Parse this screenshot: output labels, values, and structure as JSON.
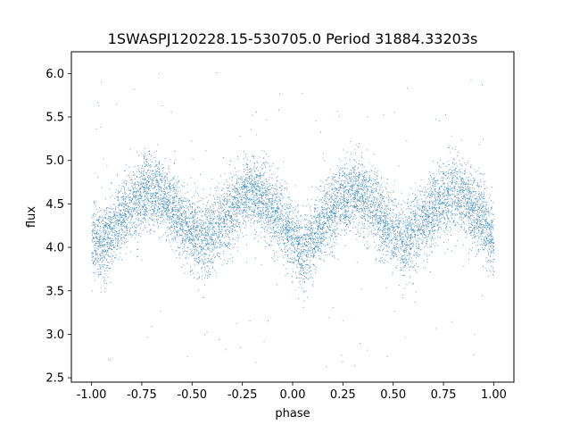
{
  "chart_data": {
    "type": "scatter",
    "title": "1SWASPJ120228.15-530705.0 Period 31884.33203s",
    "xlabel": "phase",
    "ylabel": "flux",
    "xlim": [
      -1.1,
      1.1
    ],
    "ylim": [
      2.45,
      6.25
    ],
    "xticks": [
      "-1.00",
      "-0.75",
      "-0.50",
      "-0.25",
      "0.00",
      "0.25",
      "0.50",
      "0.75",
      "1.00"
    ],
    "yticks": [
      "2.5",
      "3.0",
      "3.5",
      "4.0",
      "4.5",
      "5.0",
      "5.5",
      "6.0"
    ],
    "grid": false,
    "legend": "none",
    "marker_color": "#1f77b4",
    "series": [
      {
        "x_range": [
          -1.0,
          1.0
        ],
        "trend_x": [
          -1.0,
          -0.95,
          -0.85,
          -0.75,
          -0.7,
          -0.65,
          -0.55,
          -0.45,
          -0.35,
          -0.25,
          -0.2,
          -0.15,
          -0.05,
          0.05,
          0.15,
          0.25,
          0.3,
          0.35,
          0.45,
          0.55,
          0.65,
          0.75,
          0.8,
          0.85,
          0.95,
          1.0
        ],
        "trend_y": [
          4.1,
          4.0,
          4.35,
          4.6,
          4.65,
          4.6,
          4.3,
          4.05,
          4.3,
          4.6,
          4.65,
          4.55,
          4.3,
          3.95,
          4.3,
          4.55,
          4.65,
          4.6,
          4.3,
          4.05,
          4.3,
          4.55,
          4.65,
          4.55,
          4.3,
          4.1
        ],
        "typical_spread": 0.25,
        "outlier_range": [
          2.6,
          6.05
        ],
        "approx_point_count": 20000
      }
    ]
  }
}
